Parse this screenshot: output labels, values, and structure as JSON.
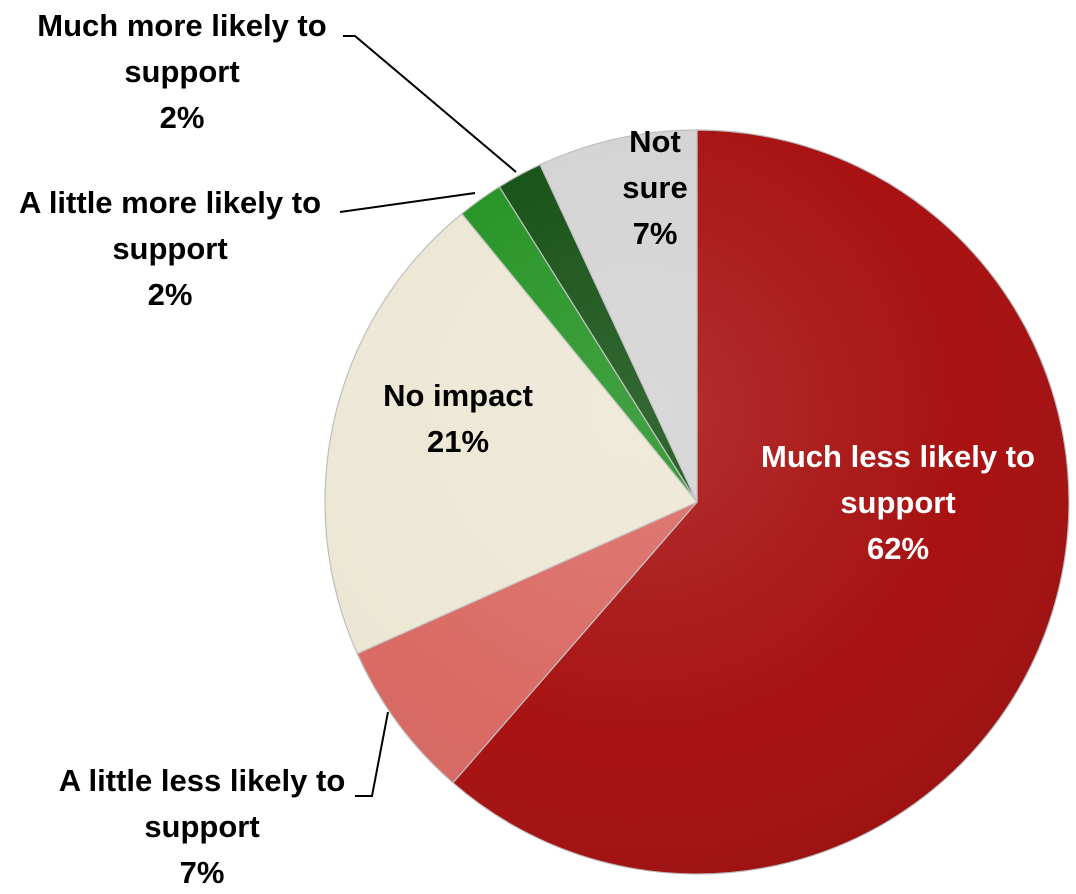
{
  "chart_data": {
    "type": "pie",
    "start_angle_deg": 0,
    "direction": "clockwise",
    "slices": [
      {
        "label_lines": [
          "Much less likely to",
          "support"
        ],
        "value": 62,
        "value_label": "62%",
        "color": "#a50a0a",
        "label_color": "#ffffff"
      },
      {
        "label_lines": [
          "A little less likely to",
          "support"
        ],
        "value": 7,
        "value_label": "7%",
        "color": "#d9655f",
        "label_color": "#000000"
      },
      {
        "label_lines": [
          "No impact"
        ],
        "value": 21,
        "value_label": "21%",
        "color": "#ece6d3",
        "label_color": "#000000"
      },
      {
        "label_lines": [
          "A little more likely to",
          "support"
        ],
        "value": 2,
        "value_label": "2%",
        "color": "#1c8f1c",
        "label_color": "#000000"
      },
      {
        "label_lines": [
          "Much more likely to",
          "support"
        ],
        "value": 2,
        "value_label": "2%",
        "color": "#0c4a0c",
        "label_color": "#000000"
      },
      {
        "label_lines": [
          "Not",
          "sure"
        ],
        "value": 7,
        "value_label": "7%",
        "color": "#d2d2d2",
        "label_color": "#000000"
      }
    ]
  }
}
